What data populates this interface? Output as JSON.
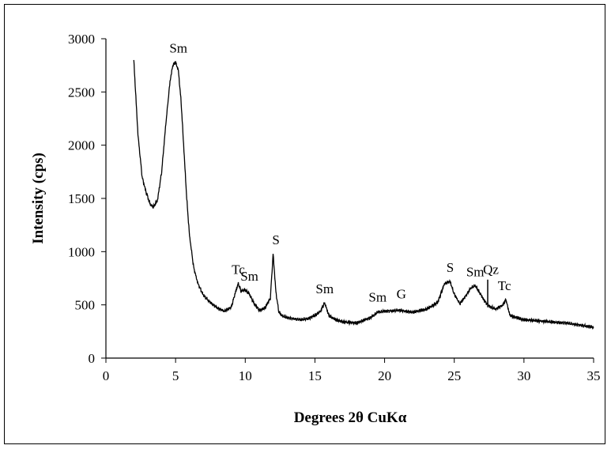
{
  "chart_data": {
    "type": "line",
    "xlabel": "Degrees 2θ CuKα",
    "ylabel": "Intensity (cps)",
    "xlim": [
      0,
      35
    ],
    "ylim": [
      0,
      3000
    ],
    "x_ticks": [
      0,
      5,
      10,
      15,
      20,
      25,
      30,
      35
    ],
    "y_ticks": [
      0,
      500,
      1000,
      1500,
      2000,
      2500,
      3000
    ],
    "grid": false,
    "legend": "none",
    "line_color": "#000000",
    "series": [
      {
        "x": [
          2.0,
          2.3,
          2.6,
          2.9,
          3.2,
          3.4,
          3.7,
          4.0,
          4.3,
          4.6,
          4.8,
          5.0,
          5.2,
          5.4,
          5.6,
          5.8,
          6.0,
          6.3,
          6.6,
          7.0,
          7.5,
          8.0,
          8.5,
          9.0,
          9.3,
          9.5,
          9.7,
          10.0,
          10.3,
          10.6,
          11.0,
          11.4,
          11.8,
          12.0,
          12.2,
          12.4,
          12.6,
          13.0,
          13.5,
          14.0,
          14.5,
          15.0,
          15.4,
          15.7,
          16.0,
          16.5,
          17.0,
          18.0,
          19.0,
          19.5,
          20.0,
          21.0,
          22.0,
          23.0,
          23.8,
          24.3,
          24.7,
          25.0,
          25.4,
          25.8,
          26.2,
          26.5,
          26.8,
          27.2,
          27.6,
          28.0,
          28.5,
          28.7,
          29.0,
          30.0,
          31.0,
          32.0,
          33.0,
          34.0,
          35.0
        ],
        "y": [
          2800,
          2100,
          1700,
          1550,
          1440,
          1420,
          1480,
          1750,
          2200,
          2600,
          2750,
          2780,
          2700,
          2400,
          1950,
          1500,
          1150,
          850,
          700,
          590,
          520,
          470,
          440,
          480,
          620,
          700,
          630,
          640,
          600,
          520,
          450,
          470,
          560,
          980,
          620,
          440,
          400,
          380,
          370,
          360,
          370,
          400,
          440,
          520,
          400,
          360,
          340,
          330,
          380,
          430,
          440,
          450,
          430,
          460,
          520,
          700,
          720,
          600,
          510,
          580,
          660,
          680,
          620,
          530,
          480,
          460,
          500,
          550,
          400,
          360,
          350,
          340,
          330,
          310,
          290
        ]
      }
    ],
    "annotations": [
      {
        "label": "Sm",
        "x": 5.2,
        "y": 2780
      },
      {
        "label": "Tc",
        "x": 9.5,
        "y": 700
      },
      {
        "label": "Sm",
        "x": 10.3,
        "y": 640
      },
      {
        "label": "S",
        "x": 12.2,
        "y": 980
      },
      {
        "label": "Sm",
        "x": 15.7,
        "y": 520
      },
      {
        "label": "Sm",
        "x": 19.5,
        "y": 440
      },
      {
        "label": "G",
        "x": 21.2,
        "y": 470
      },
      {
        "label": "S",
        "x": 24.7,
        "y": 720
      },
      {
        "label": "Sm",
        "x": 26.5,
        "y": 680
      },
      {
        "label": "Qz",
        "x": 27.4,
        "y": 700
      },
      {
        "label": "Tc",
        "x": 28.6,
        "y": 550
      }
    ]
  }
}
